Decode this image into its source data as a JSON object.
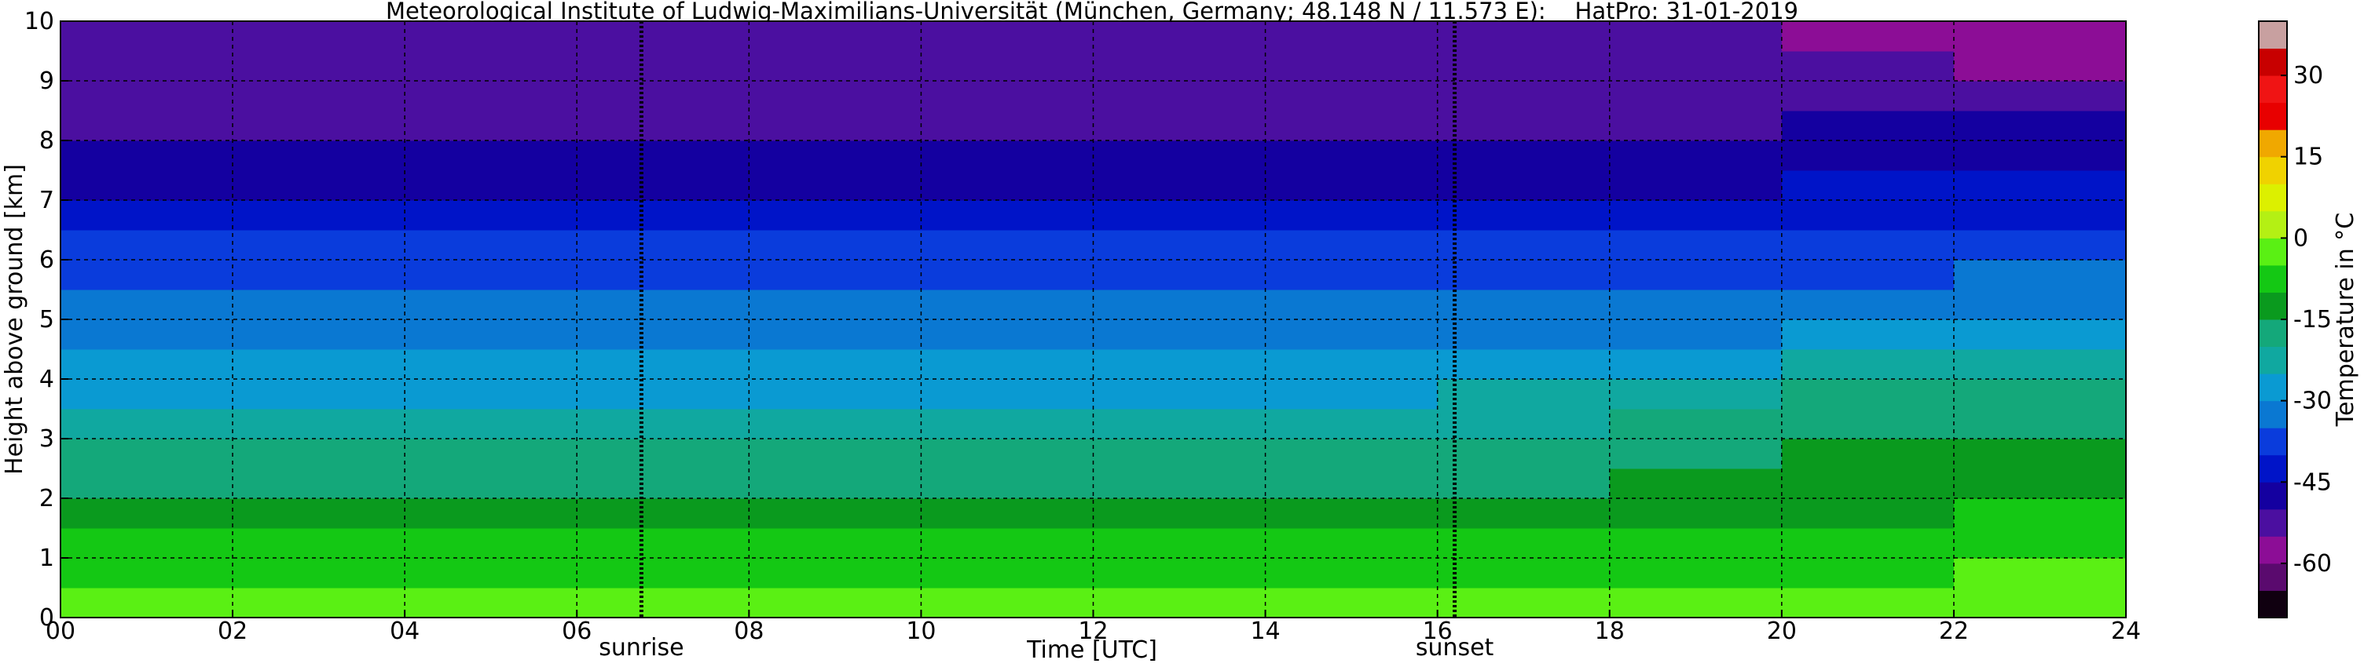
{
  "chart_data": {
    "type": "heatmap",
    "title": "Meteorological Institute of Ludwig-Maximilians-Universität (München, Germany; 48.148 N / 11.573 E):    HatPro: 31-01-2019",
    "xlabel": "Time [UTC]",
    "ylabel": "Height above ground [km]",
    "xlim": [
      0,
      24
    ],
    "ylim": [
      0,
      10
    ],
    "xticks": [
      {
        "value": 0,
        "label": "00"
      },
      {
        "value": 2,
        "label": "02"
      },
      {
        "value": 4,
        "label": "04"
      },
      {
        "value": 6,
        "label": "06"
      },
      {
        "value": 8,
        "label": "08"
      },
      10,
      12,
      14,
      16,
      18,
      20,
      22,
      24
    ],
    "yticks": [
      0,
      1,
      2,
      3,
      4,
      5,
      6,
      7,
      8,
      9,
      10
    ],
    "grid": true,
    "x_edges": [
      0,
      2,
      4,
      6,
      8,
      10,
      12,
      14,
      16,
      18,
      20,
      22,
      24
    ],
    "y_edges": [
      0,
      0.5,
      1,
      1.5,
      2,
      2.5,
      3,
      3.5,
      4,
      4.5,
      5,
      5.5,
      6,
      6.5,
      7,
      7.5,
      8,
      8.5,
      9,
      9.5,
      10
    ],
    "z": [
      [
        -3,
        -3,
        -3,
        -3,
        -3,
        -3,
        -3,
        -3,
        -3,
        -3,
        -2,
        -1
      ],
      [
        -7,
        -7,
        -7,
        -7,
        -7,
        -7,
        -7,
        -7,
        -7,
        -7,
        -6,
        -5
      ],
      [
        -10,
        -10,
        -10,
        -10,
        -10,
        -10,
        -10,
        -10,
        -10,
        -10,
        -9,
        -8
      ],
      [
        -13,
        -13,
        -13,
        -13,
        -13,
        -13,
        -13,
        -13,
        -13,
        -12,
        -11,
        -10
      ],
      [
        -16,
        -16,
        -16,
        -16,
        -16,
        -16,
        -16,
        -16,
        -16,
        -15,
        -13,
        -12
      ],
      [
        -18,
        -18,
        -18,
        -18,
        -18,
        -18,
        -18,
        -18,
        -18,
        -17,
        -15,
        -14
      ],
      [
        -22,
        -22,
        -22,
        -22,
        -22,
        -22,
        -22,
        -22,
        -21,
        -20,
        -17,
        -16
      ],
      [
        -26,
        -26,
        -26,
        -26,
        -26,
        -26,
        -26,
        -26,
        -25,
        -24,
        -19,
        -18
      ],
      [
        -29,
        -29,
        -29,
        -29,
        -29,
        -29,
        -29,
        -29,
        -29,
        -28,
        -23,
        -21
      ],
      [
        -32,
        -32,
        -32,
        -32,
        -32,
        -32,
        -32,
        -32,
        -32,
        -31,
        -28,
        -27
      ],
      [
        -34,
        -34,
        -34,
        -34,
        -34,
        -34,
        -34,
        -34,
        -34,
        -34,
        -32,
        -31
      ],
      [
        -37,
        -37,
        -37,
        -37,
        -37,
        -37,
        -37,
        -37,
        -37,
        -37,
        -36,
        -35
      ],
      [
        -40,
        -40,
        -40,
        -40,
        -40,
        -40,
        -40,
        -40,
        -40,
        -40,
        -39,
        -38
      ],
      [
        -44,
        -44,
        -44,
        -44,
        -44,
        -44,
        -44,
        -44,
        -44,
        -43,
        -42,
        -41
      ],
      [
        -48,
        -48,
        -48,
        -48,
        -48,
        -48,
        -48,
        -48,
        -48,
        -47,
        -45,
        -44
      ],
      [
        -50,
        -50,
        -50,
        -50,
        -50,
        -50,
        -50,
        -50,
        -50,
        -49,
        -48,
        -47
      ],
      [
        -51,
        -51,
        -51,
        -51,
        -51,
        -51,
        -51,
        -51,
        -51,
        -51,
        -50,
        -50
      ],
      [
        -52,
        -52,
        -52,
        -52,
        -52,
        -52,
        -52,
        -52,
        -52,
        -52,
        -52,
        -53
      ],
      [
        -53,
        -53,
        -53,
        -53,
        -53,
        -53,
        -53,
        -53,
        -53,
        -53,
        -54,
        -56
      ],
      [
        -53,
        -53,
        -53,
        -53,
        -53,
        -53,
        -53,
        -53,
        -53,
        -54,
        -56,
        -58
      ]
    ],
    "annotations": [
      {
        "x": 6.75,
        "label": "sunrise"
      },
      {
        "x": 16.2,
        "label": "sunset"
      }
    ],
    "colorbar": {
      "label": "Temperature in °C",
      "lim": [
        -70,
        40
      ],
      "ticks": [
        -60,
        -45,
        -30,
        -15,
        0,
        15,
        30
      ],
      "colors": [
        "#100010",
        "#5a0a6e",
        "#8c0d96",
        "#4b0fa0",
        "#1400a0",
        "#0014c8",
        "#0a3cdc",
        "#0a78d2",
        "#0a9ad2",
        "#10a8a0",
        "#14a87a",
        "#0a9a1e",
        "#14c814",
        "#5af014",
        "#b4f014",
        "#dcf000",
        "#f0d200",
        "#f0a800",
        "#e80000",
        "#f01414",
        "#c80000",
        "#c8a0a0"
      ]
    }
  }
}
